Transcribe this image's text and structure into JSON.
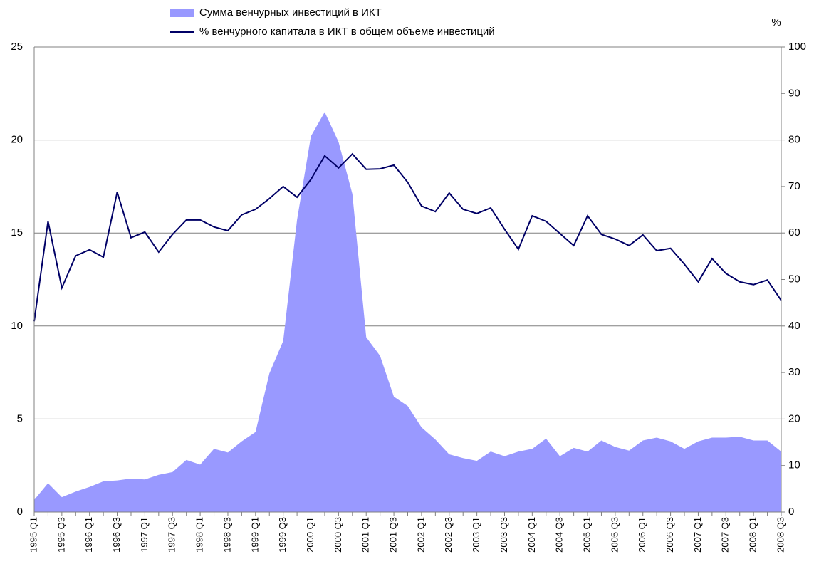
{
  "chart_data": {
    "type": "area-line",
    "categories": [
      "1995 Q1",
      null,
      "1995 Q3",
      null,
      "1996 Q1",
      null,
      "1996 Q3",
      null,
      "1997 Q1",
      null,
      "1997 Q3",
      null,
      "1998 Q1",
      null,
      "1998 Q3",
      null,
      "1999 Q1",
      null,
      "1999 Q3",
      null,
      "2000 Q1",
      null,
      "2000 Q3",
      null,
      "2001 Q1",
      null,
      "2001 Q3",
      null,
      "2002 Q1",
      null,
      "2002 Q3",
      null,
      "2003 Q1",
      null,
      "2003 Q3",
      null,
      "2004 Q1",
      null,
      "2004 Q3",
      null,
      "2005 Q1",
      null,
      "2005 Q3",
      null,
      "2006 Q1",
      null,
      "2006 Q3",
      null,
      "2007 Q1",
      null,
      "2007 Q3",
      null,
      "2008 Q1",
      null,
      "2008 Q3"
    ],
    "series": [
      {
        "name": "Сумма венчурных инвестиций в ИКТ",
        "color": "#9999ff",
        "kind": "area",
        "values": [
          0.65,
          1.55,
          0.8,
          1.1,
          1.35,
          1.65,
          1.7,
          1.8,
          1.75,
          2.0,
          2.15,
          2.8,
          2.55,
          3.4,
          3.2,
          3.8,
          4.3,
          7.45,
          9.2,
          15.7,
          20.2,
          21.5,
          19.9,
          17.1,
          9.4,
          8.4,
          6.2,
          5.7,
          4.55,
          3.9,
          3.1,
          2.9,
          2.75,
          3.25,
          3.0,
          3.25,
          3.4,
          3.95,
          3.0,
          3.45,
          3.25,
          3.85,
          3.5,
          3.3,
          3.85,
          4.0,
          3.8,
          3.4,
          3.8,
          4.0,
          4.0,
          4.05,
          3.85,
          3.85,
          3.25
        ]
      },
      {
        "name": "% венчурного капитала в ИКТ в общем объеме инвестиций",
        "color": "#000066",
        "kind": "line",
        "axis": "y2",
        "values": [
          41,
          62.5,
          48.2,
          55.1,
          56.4,
          54.8,
          68.8,
          59,
          60.2,
          55.9,
          59.7,
          62.8,
          62.8,
          61.3,
          60.5,
          63.9,
          65.1,
          67.4,
          70,
          67.7,
          71.5,
          76.6,
          74,
          77,
          73.7,
          73.8,
          74.6,
          70.9,
          65.8,
          64.6,
          68.6,
          65.1,
          64.2,
          65.4,
          60.8,
          56.5,
          63.7,
          62.5,
          59.9,
          57.3,
          63.7,
          59.7,
          58.7,
          57.3,
          59.6,
          56.2,
          56.7,
          53.3,
          49.5,
          54.5,
          51.3,
          49.5,
          48.9,
          49.9,
          45.5
        ]
      }
    ],
    "ylim": [
      0,
      25
    ],
    "yticks": [
      0,
      5,
      10,
      15,
      20,
      25
    ],
    "y2label": "%",
    "y2lim": [
      0,
      100
    ],
    "y2ticks": [
      0,
      10,
      20,
      30,
      40,
      50,
      60,
      70,
      80,
      90,
      100
    ],
    "grid": true,
    "legend": "top"
  }
}
